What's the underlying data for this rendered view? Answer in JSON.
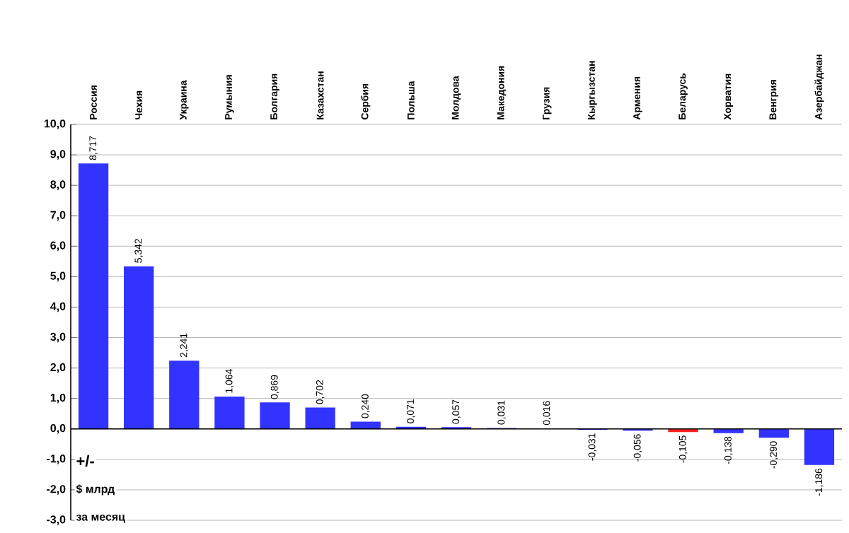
{
  "chart_data": {
    "type": "bar",
    "categories": [
      "Россия",
      "Чехия",
      "Украина",
      "Румыния",
      "Болгария",
      "Казахстан",
      "Сербия",
      "Польша",
      "Молдова",
      "Македония",
      "Грузия",
      "Кыргызстан",
      "Армения",
      "Беларусь",
      "Хорватия",
      "Венгрия",
      "Азербайджан"
    ],
    "values": [
      8.717,
      5.342,
      2.241,
      1.064,
      0.869,
      0.702,
      0.24,
      0.071,
      0.057,
      0.031,
      0.016,
      -0.031,
      -0.056,
      -0.105,
      -0.138,
      -0.29,
      -1.186
    ],
    "colors": [
      "#3333ff",
      "#3333ff",
      "#3333ff",
      "#3333ff",
      "#3333ff",
      "#3333ff",
      "#3333ff",
      "#3333ff",
      "#3333ff",
      "#3333ff",
      "#3333ff",
      "#3333ff",
      "#3333ff",
      "#ff2020",
      "#3333ff",
      "#3333ff",
      "#3333ff"
    ],
    "value_labels": [
      "8,717",
      "5,342",
      "2,241",
      "1,064",
      "0,869",
      "0,702",
      "0,240",
      "0,071",
      "0,057",
      "0,031",
      "0,016",
      "-0,031",
      "-0,056",
      "-0,105",
      "-0,138",
      "-0,290",
      "-1,186"
    ],
    "ylim": [
      -3,
      10
    ],
    "yticks": [
      {
        "value": -3,
        "label": "-3,0"
      },
      {
        "value": -2,
        "label": "-2,0"
      },
      {
        "value": -1,
        "label": "-1,0"
      },
      {
        "value": 0,
        "label": "0,0"
      },
      {
        "value": 1,
        "label": "1,0"
      },
      {
        "value": 2,
        "label": "2,0"
      },
      {
        "value": 3,
        "label": "3,0"
      },
      {
        "value": 4,
        "label": "4,0"
      },
      {
        "value": 5,
        "label": "5,0"
      },
      {
        "value": 6,
        "label": "6,0"
      },
      {
        "value": 7,
        "label": "7,0"
      },
      {
        "value": 8,
        "label": "8,0"
      },
      {
        "value": 9,
        "label": "9,0"
      },
      {
        "value": 10,
        "label": "10,0"
      }
    ],
    "grid": "y",
    "annotations": [
      "+/-",
      "$ млрд",
      "за месяц"
    ]
  }
}
